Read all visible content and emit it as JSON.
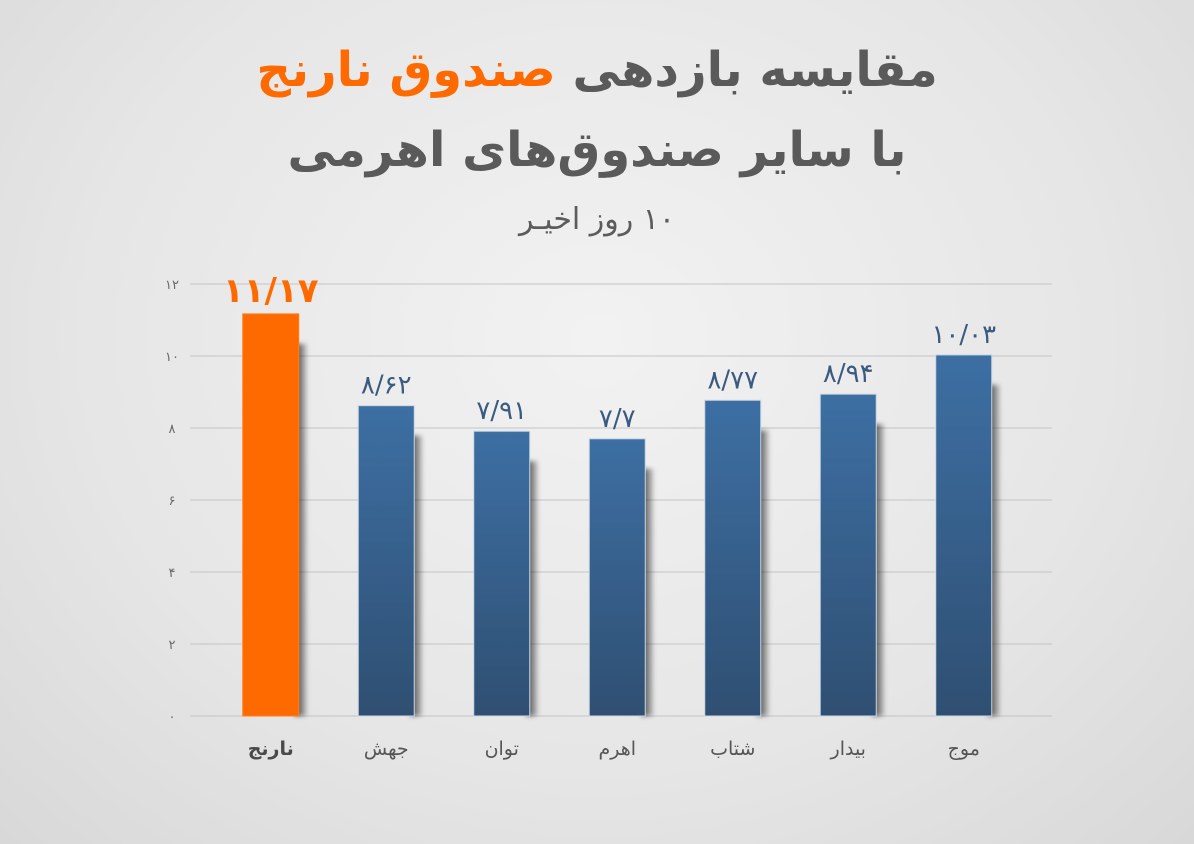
{
  "header": {
    "title_line1_part1": "مقایسه بازدهی ",
    "title_line1_highlight": "صندوق نارنج",
    "title_line2": "با سایر صندوق‌های اهرمی",
    "subtitle": "۱۰ روز اخیـر"
  },
  "colors": {
    "highlight": "#ff6a00",
    "bar": "#3b6390",
    "label": "#3b5a80",
    "grid": "#c4c4c4"
  },
  "chart_data": {
    "type": "bar",
    "categories": [
      "نارنج",
      "جهش",
      "توان",
      "اهرم",
      "شتاب",
      "بیدار",
      "موج"
    ],
    "values": [
      11.17,
      8.62,
      7.91,
      7.7,
      8.77,
      8.94,
      10.03
    ],
    "data_labels": [
      "۱۱/۱۷",
      "۸/۶۲",
      "۷/۹۱",
      "۷/۷",
      "۸/۷۷",
      "۸/۹۴",
      "۱۰/۰۳"
    ],
    "highlight_index": 0,
    "ylim": [
      0,
      12
    ],
    "yticks": [
      0,
      2,
      4,
      6,
      8,
      10,
      12
    ],
    "ytick_labels": [
      "۰",
      "۲",
      "۴",
      "۶",
      "۸",
      "۱۰",
      "۱۲"
    ],
    "grid": true
  }
}
